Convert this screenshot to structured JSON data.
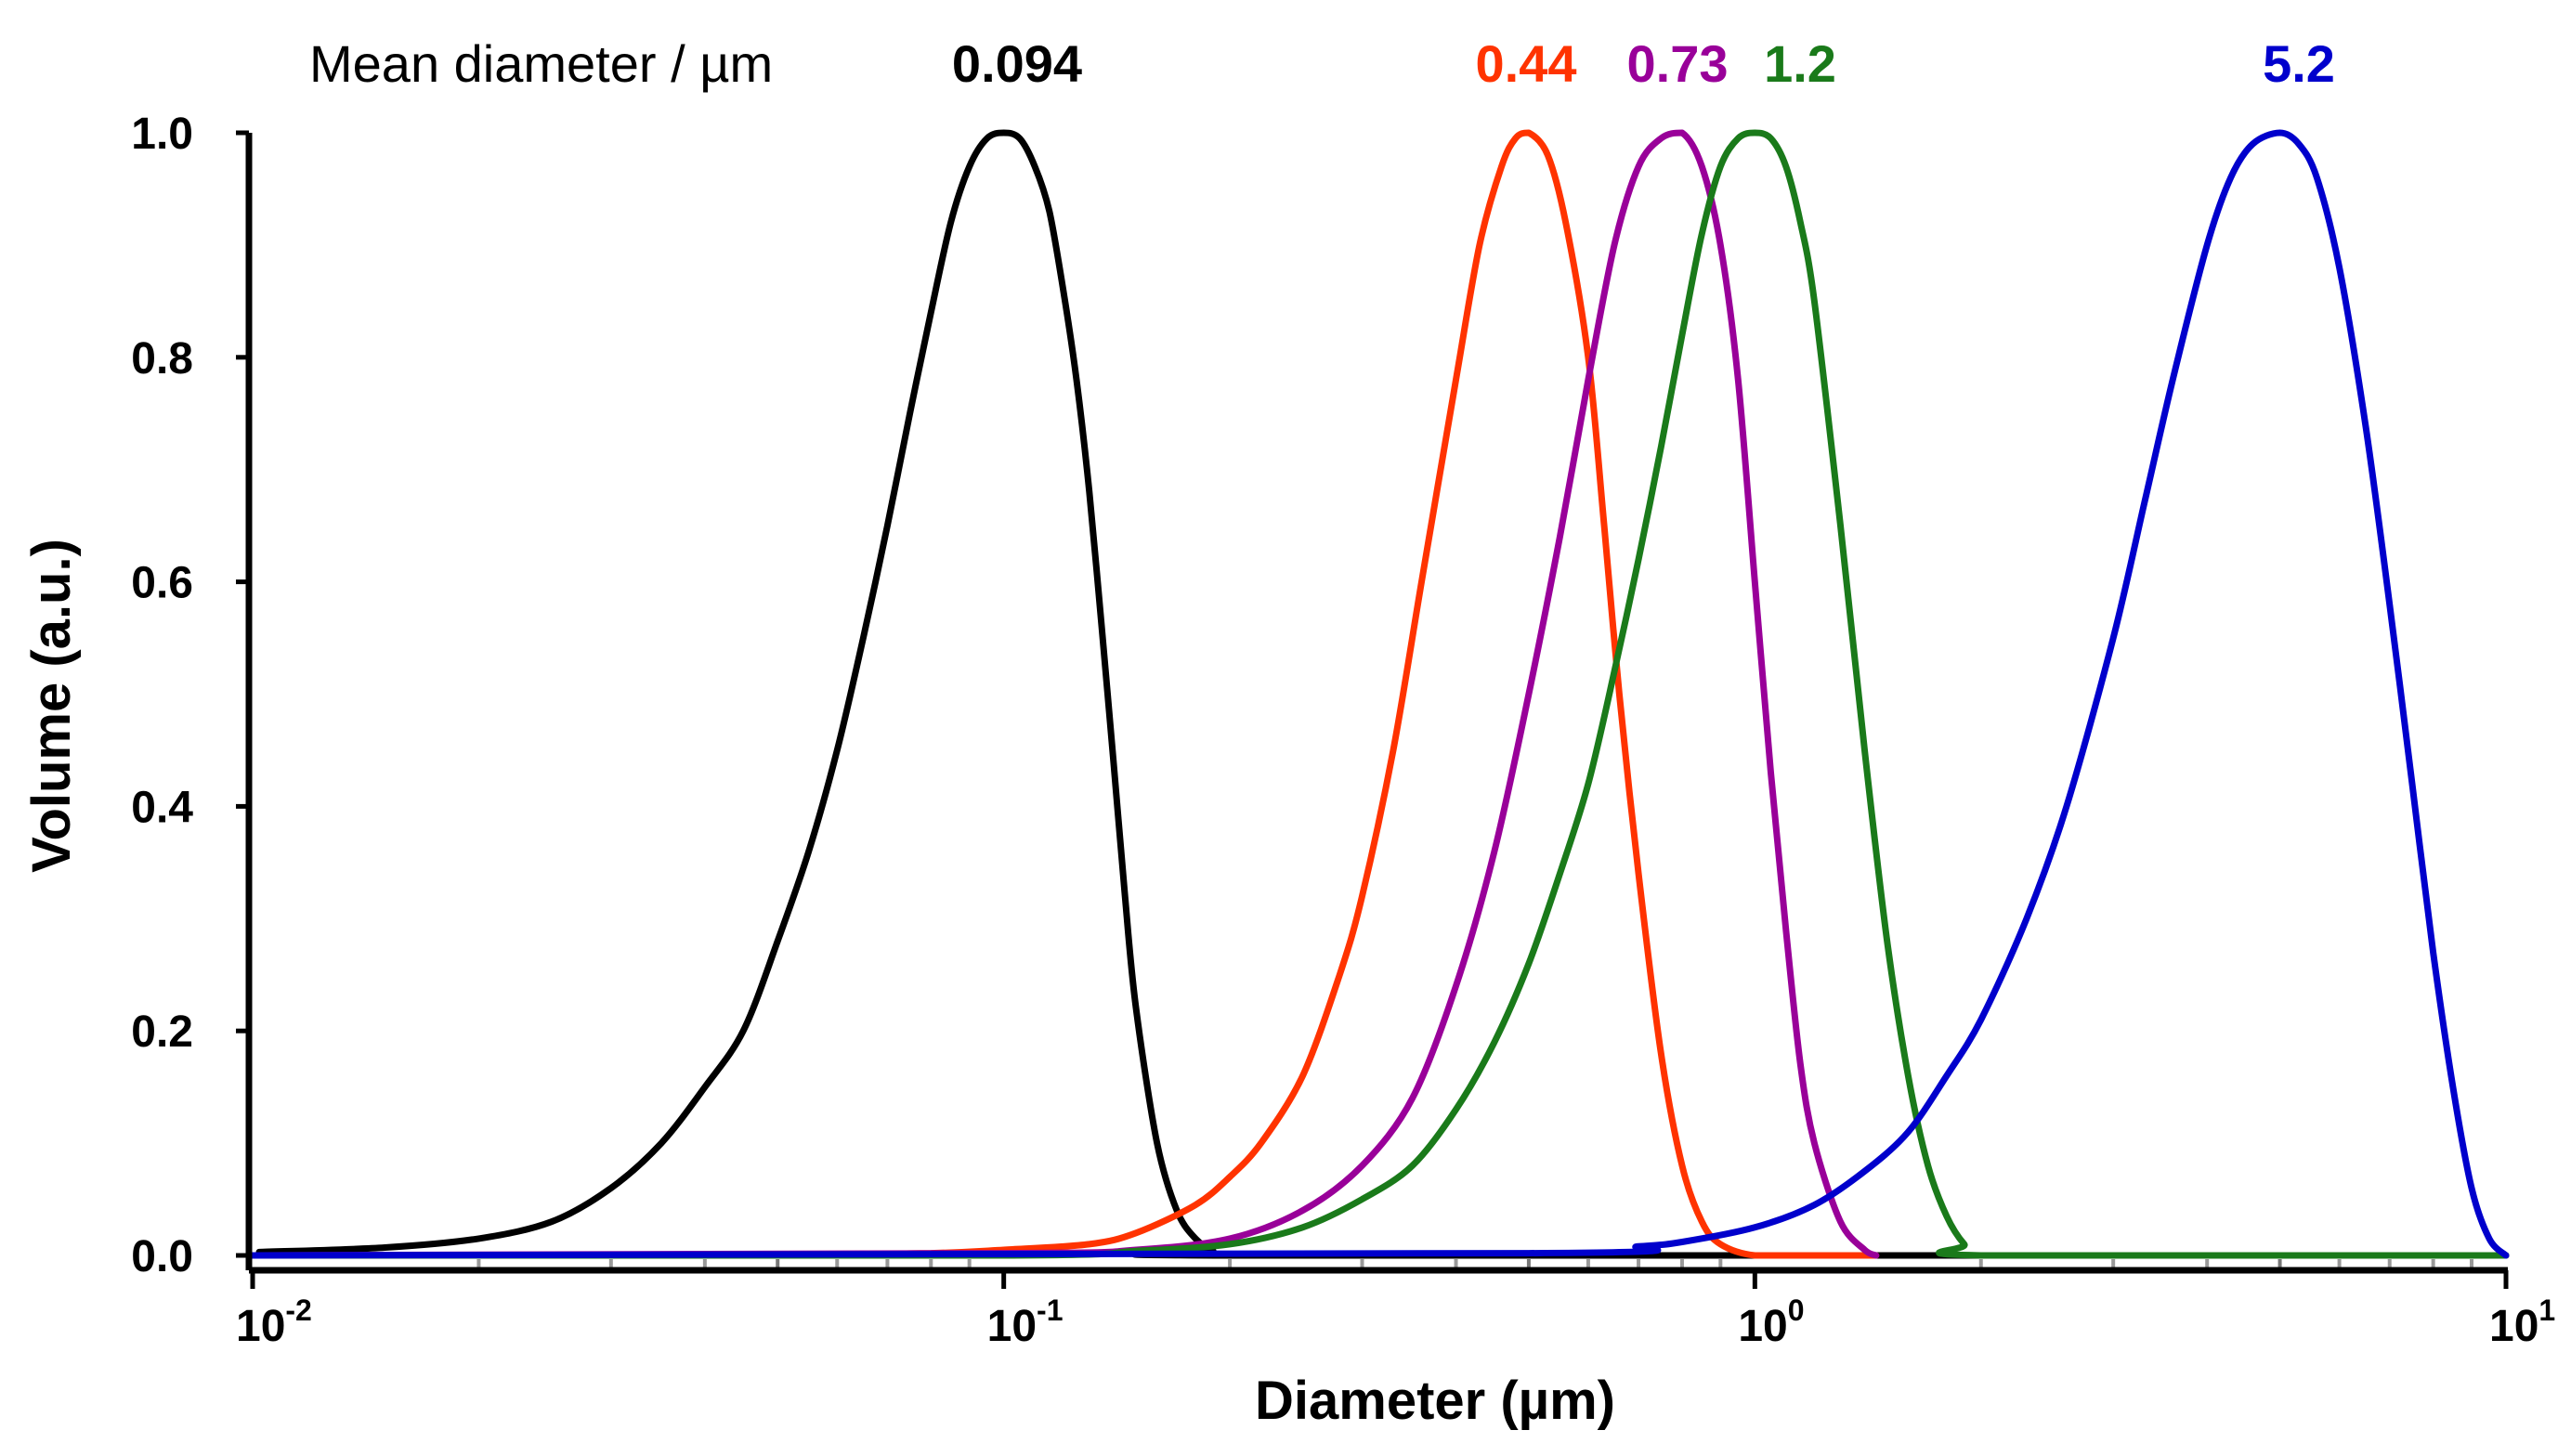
{
  "chart_data": {
    "type": "line",
    "title": "",
    "xlabel": "Diameter (µm)",
    "ylabel": "Volume (a.u.)",
    "xscale": "log",
    "xlim": [
      0.01,
      10
    ],
    "ylim": [
      0,
      1.0
    ],
    "grid": false,
    "y_ticks": [
      {
        "value": 0.0,
        "label": "0.0"
      },
      {
        "value": 0.2,
        "label": "0.2"
      },
      {
        "value": 0.4,
        "label": "0.4"
      },
      {
        "value": 0.6,
        "label": "0.6"
      },
      {
        "value": 0.8,
        "label": "0.8"
      },
      {
        "value": 1.0,
        "label": "1.0"
      }
    ],
    "x_ticks": [
      {
        "value": 0.01,
        "base": "10",
        "exp": "-2"
      },
      {
        "value": 0.1,
        "base": "10",
        "exp": "-1"
      },
      {
        "value": 1,
        "base": "10",
        "exp": "0"
      },
      {
        "value": 10,
        "base": "10",
        "exp": "1"
      }
    ],
    "legend_title": "Mean diameter / µm",
    "series": [
      {
        "name": "0.094",
        "color": "#000000",
        "x": [
          0.0102,
          0.015,
          0.02,
          0.025,
          0.03,
          0.035,
          0.04,
          0.045,
          0.05,
          0.055,
          0.06,
          0.065,
          0.07,
          0.075,
          0.08,
          0.085,
          0.09,
          0.095,
          0.1,
          0.105,
          0.11,
          0.115,
          0.12,
          0.125,
          0.13,
          0.135,
          0.14,
          0.145,
          0.15,
          0.16,
          0.17,
          0.18,
          0.19,
          0.2,
          10
        ],
        "y": [
          0.003,
          0.007,
          0.015,
          0.03,
          0.06,
          0.1,
          0.15,
          0.2,
          0.28,
          0.36,
          0.45,
          0.55,
          0.65,
          0.75,
          0.84,
          0.92,
          0.97,
          0.995,
          1.0,
          0.995,
          0.97,
          0.93,
          0.86,
          0.78,
          0.68,
          0.56,
          0.44,
          0.32,
          0.22,
          0.1,
          0.04,
          0.015,
          0.004,
          0.0,
          0.0
        ]
      },
      {
        "name": "0.44",
        "color": "#ff3300",
        "x": [
          0.01,
          0.05,
          0.08,
          0.1,
          0.13,
          0.15,
          0.18,
          0.2,
          0.22,
          0.25,
          0.28,
          0.3,
          0.33,
          0.36,
          0.4,
          0.43,
          0.46,
          0.48,
          0.5,
          0.53,
          0.56,
          0.6,
          0.63,
          0.66,
          0.7,
          0.75,
          0.8,
          0.85,
          0.9,
          1.0,
          1.2,
          1.45
        ],
        "y": [
          0.0,
          0.0,
          0.002,
          0.005,
          0.01,
          0.02,
          0.045,
          0.07,
          0.1,
          0.16,
          0.25,
          0.32,
          0.45,
          0.6,
          0.78,
          0.9,
          0.97,
          0.995,
          1.0,
          0.98,
          0.92,
          0.8,
          0.65,
          0.5,
          0.34,
          0.18,
          0.08,
          0.03,
          0.01,
          0.0,
          0.0,
          0.0
        ]
      },
      {
        "name": "0.73",
        "color": "#990099",
        "x": [
          0.01,
          0.1,
          0.15,
          0.2,
          0.25,
          0.3,
          0.35,
          0.4,
          0.45,
          0.5,
          0.55,
          0.6,
          0.65,
          0.7,
          0.75,
          0.8,
          0.85,
          0.9,
          0.95,
          1.0,
          1.05,
          1.1,
          1.15,
          1.2,
          1.3,
          1.4,
          1.45
        ],
        "y": [
          0.0,
          0.002,
          0.005,
          0.015,
          0.04,
          0.08,
          0.14,
          0.24,
          0.36,
          0.5,
          0.64,
          0.78,
          0.9,
          0.97,
          0.995,
          1.0,
          0.97,
          0.9,
          0.78,
          0.6,
          0.43,
          0.29,
          0.17,
          0.1,
          0.03,
          0.005,
          0.0
        ]
      },
      {
        "name": "1.2",
        "color": "#1a7a1a",
        "x": [
          0.01,
          0.1,
          0.15,
          0.2,
          0.25,
          0.3,
          0.35,
          0.4,
          0.45,
          0.5,
          0.55,
          0.6,
          0.65,
          0.7,
          0.75,
          0.8,
          0.85,
          0.9,
          0.95,
          1.0,
          1.05,
          1.1,
          1.15,
          1.2,
          1.3,
          1.4,
          1.5,
          1.6,
          1.7,
          1.8,
          1.9,
          2.0,
          10
        ],
        "y": [
          0.0,
          0.0,
          0.004,
          0.01,
          0.025,
          0.05,
          0.08,
          0.13,
          0.19,
          0.26,
          0.34,
          0.42,
          0.52,
          0.62,
          0.72,
          0.82,
          0.91,
          0.97,
          0.995,
          1.0,
          0.995,
          0.97,
          0.92,
          0.85,
          0.65,
          0.45,
          0.28,
          0.16,
          0.08,
          0.035,
          0.01,
          0.0,
          0.0
        ]
      },
      {
        "name": "5.2",
        "color": "#0000cc",
        "x": [
          0.01,
          0.5,
          0.7,
          0.8,
          1.0,
          1.2,
          1.4,
          1.6,
          1.8,
          2.0,
          2.3,
          2.6,
          3.0,
          3.3,
          3.6,
          4.0,
          4.3,
          4.6,
          5.0,
          5.3,
          5.6,
          6.0,
          6.5,
          7.0,
          7.5,
          8.0,
          8.5,
          9.0,
          9.5,
          10.0
        ],
        "y": [
          0.0,
          0.002,
          0.008,
          0.012,
          0.025,
          0.045,
          0.075,
          0.11,
          0.16,
          0.21,
          0.3,
          0.4,
          0.55,
          0.67,
          0.78,
          0.9,
          0.96,
          0.99,
          1.0,
          0.99,
          0.96,
          0.88,
          0.74,
          0.58,
          0.42,
          0.27,
          0.15,
          0.06,
          0.015,
          0.0
        ]
      }
    ]
  }
}
